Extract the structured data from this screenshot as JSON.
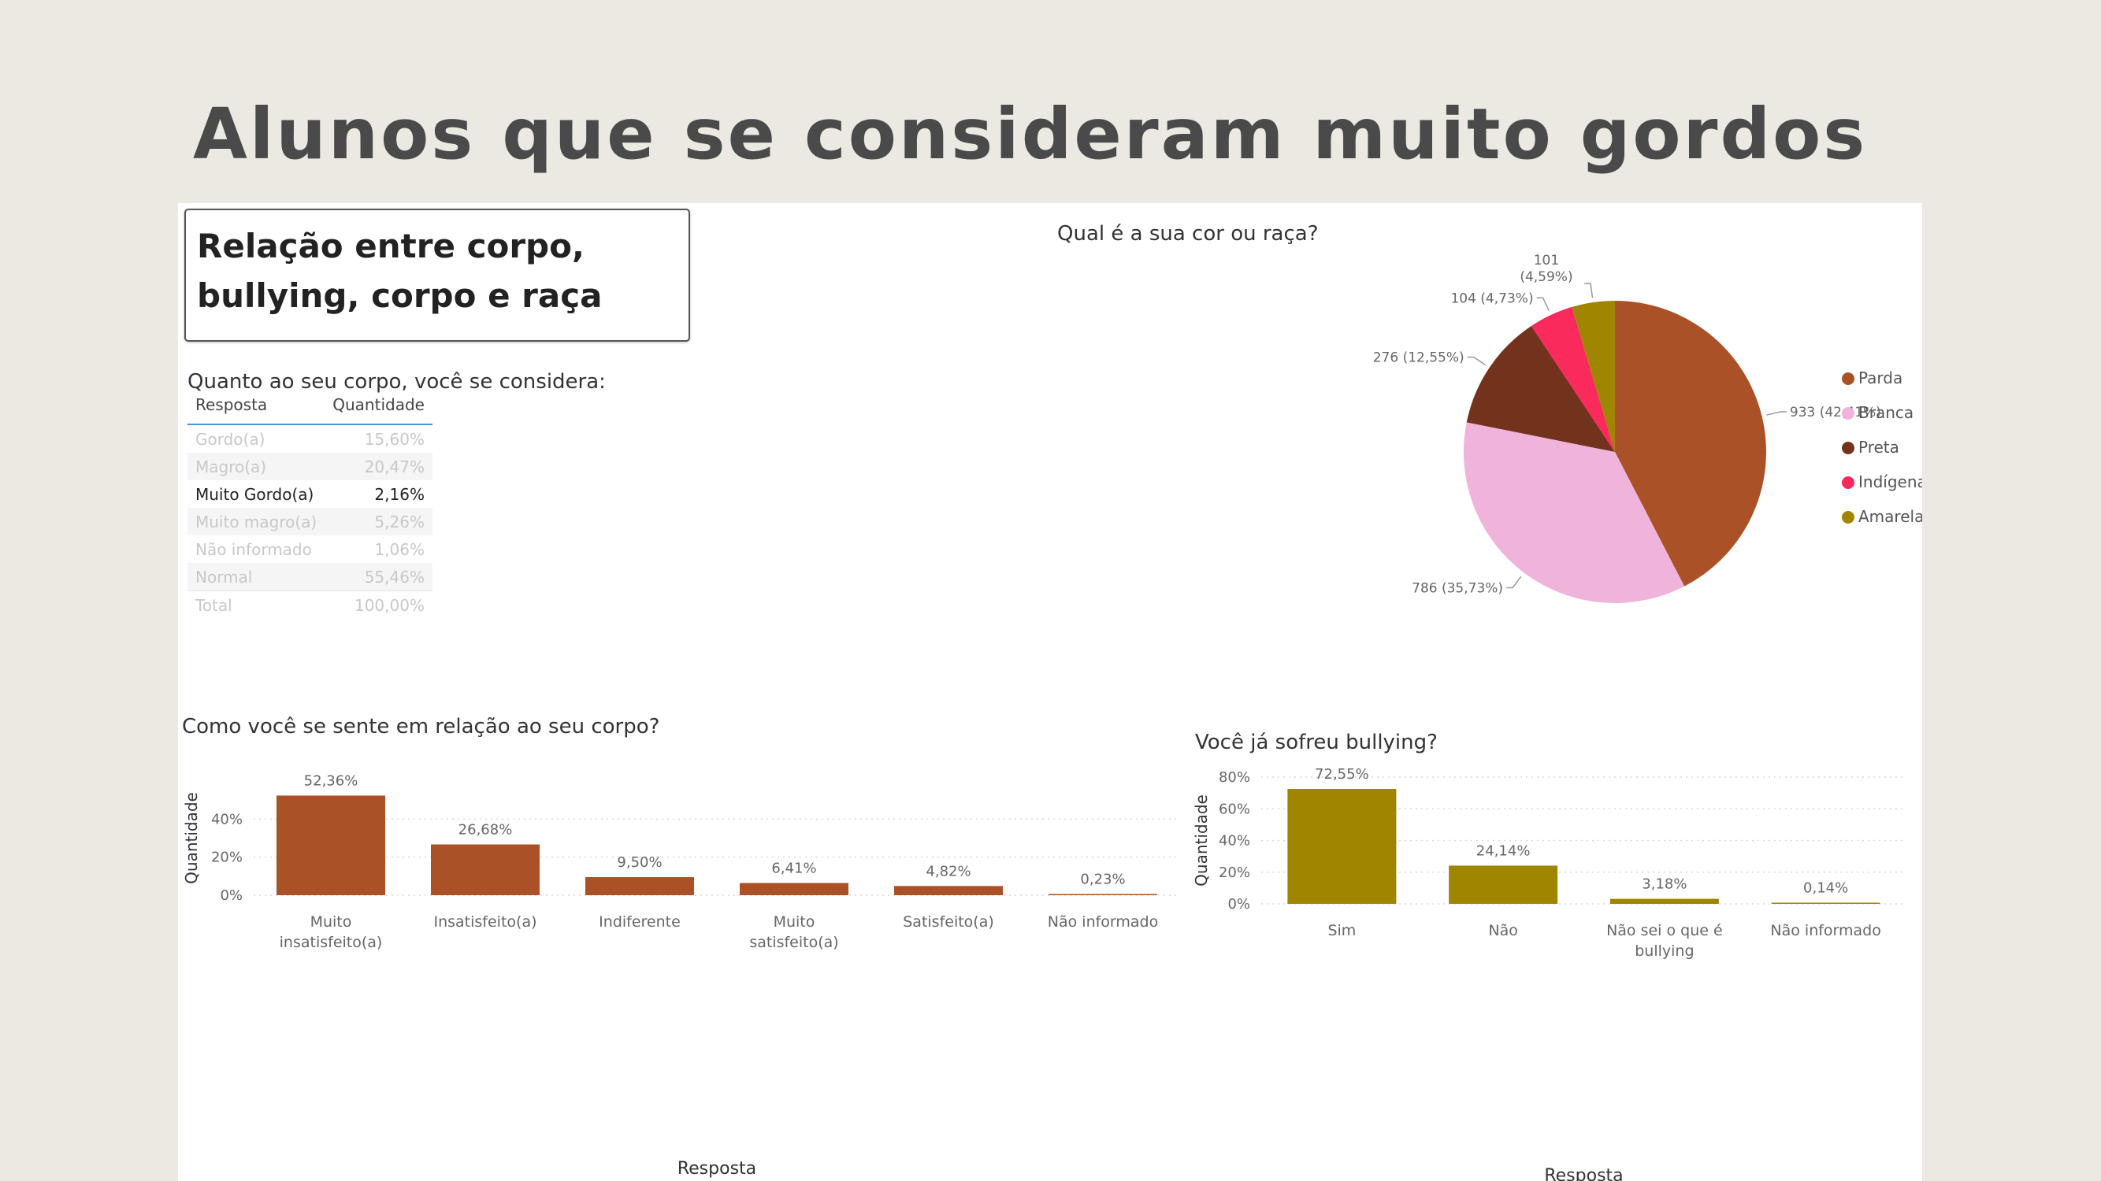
{
  "slide": {
    "title": "Alunos que se consideram muito gordos"
  },
  "report": {
    "heading": "Relação entre corpo, bullying, corpo e raça"
  },
  "colors": {
    "brown": "#ab5128",
    "olive": "#a08600",
    "pink": "#f0b3dc",
    "darkbrown": "#73321c",
    "red": "#fa2a5c",
    "mustard": "#a08600"
  },
  "body_table": {
    "title": "Quanto ao seu corpo, você se considera:",
    "headers": [
      "Resposta",
      "Quantidade"
    ],
    "rows": [
      [
        "Gordo(a)",
        "15,60%"
      ],
      [
        "Magro(a)",
        "20,47%"
      ],
      [
        "Muito Gordo(a)",
        "2,16%"
      ],
      [
        "Muito magro(a)",
        "5,26%"
      ],
      [
        "Não informado",
        "1,06%"
      ],
      [
        "Normal",
        "55,46%"
      ],
      [
        "Total",
        "100,00%"
      ]
    ],
    "highlighted_row": 2
  },
  "chart_data": [
    {
      "id": "race",
      "type": "pie",
      "title": "Qual é a sua cor ou raça?",
      "categories": [
        "Parda",
        "Branca",
        "Preta",
        "Indígena",
        "Amarela"
      ],
      "values": [
        933,
        786,
        276,
        104,
        101
      ],
      "data_labels": [
        "933 (42,41%)",
        "786 (35,73%)",
        "276 (12,55%)",
        "104 (4,73%)",
        "101 (4,59%)"
      ],
      "colors": [
        "#ab5128",
        "#f0b3dc",
        "#73321c",
        "#fa2a5c",
        "#a08600"
      ],
      "legend": "right"
    },
    {
      "id": "feel",
      "type": "bar",
      "title": "Como você se sente em relação ao seu corpo?",
      "categories": [
        "Muito insatisfeito(a)",
        "Insatisfeito(a)",
        "Indiferente",
        "Muito satisfeito(a)",
        "Satisfeito(a)",
        "Não informado"
      ],
      "values": [
        52.36,
        26.68,
        9.5,
        6.41,
        4.82,
        0.23
      ],
      "data_labels": [
        "52,36%",
        "26,68%",
        "9,50%",
        "6,41%",
        "4,82%",
        "0,23%"
      ],
      "xlabel": "Resposta",
      "ylabel": "Quantidade",
      "yticks": [
        "0%",
        "20%",
        "40%"
      ],
      "ylim": [
        0,
        60
      ],
      "color": "#ab5128",
      "grid": true
    },
    {
      "id": "bully",
      "type": "bar",
      "title": "Você já sofreu bullying?",
      "categories": [
        "Sim",
        "Não",
        "Não sei o que é bullying",
        "Não informado"
      ],
      "values": [
        72.55,
        24.14,
        3.18,
        0.14
      ],
      "data_labels": [
        "72,55%",
        "24,14%",
        "3,18%",
        "0,14%"
      ],
      "xlabel": "Resposta",
      "ylabel": "Quantidade",
      "yticks": [
        "0%",
        "20%",
        "40%",
        "60%",
        "80%"
      ],
      "ylim": [
        0,
        80
      ],
      "color": "#a08600",
      "grid": true
    }
  ]
}
